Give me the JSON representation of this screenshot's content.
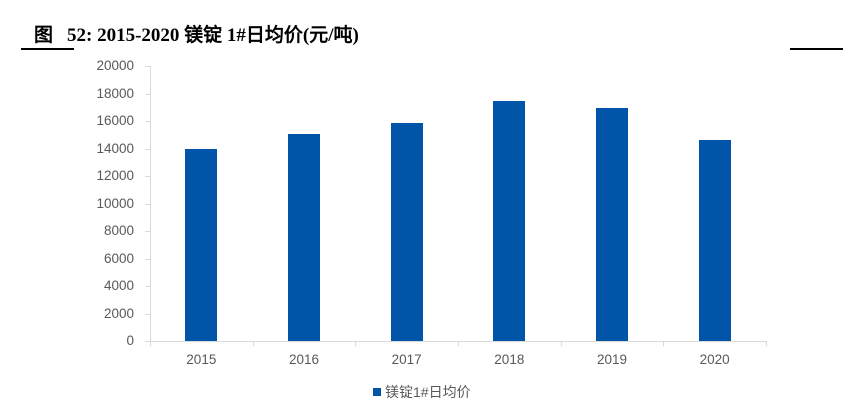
{
  "header": {
    "figure_label": "图",
    "title": "52:  2015-2020 镁锭 1#日均价(元/吨)"
  },
  "chart_data": {
    "type": "bar",
    "title": "2015-2020 镁锭 1#日均价(元/吨)",
    "xlabel": "",
    "ylabel": "",
    "categories": [
      "2015",
      "2016",
      "2017",
      "2018",
      "2019",
      "2020"
    ],
    "series": [
      {
        "name": "镁锭1#日均价",
        "color": "#0055a8",
        "values": [
          14000,
          15050,
          15850,
          17450,
          16950,
          14620
        ]
      }
    ],
    "ylim": [
      0,
      20000
    ],
    "yticks": [
      "0",
      "2000",
      "4000",
      "6000",
      "8000",
      "10000",
      "12000",
      "14000",
      "16000",
      "18000",
      "20000"
    ],
    "grid": false,
    "legend_position": "bottom"
  },
  "legend": {
    "label": "镁锭1#日均价"
  }
}
